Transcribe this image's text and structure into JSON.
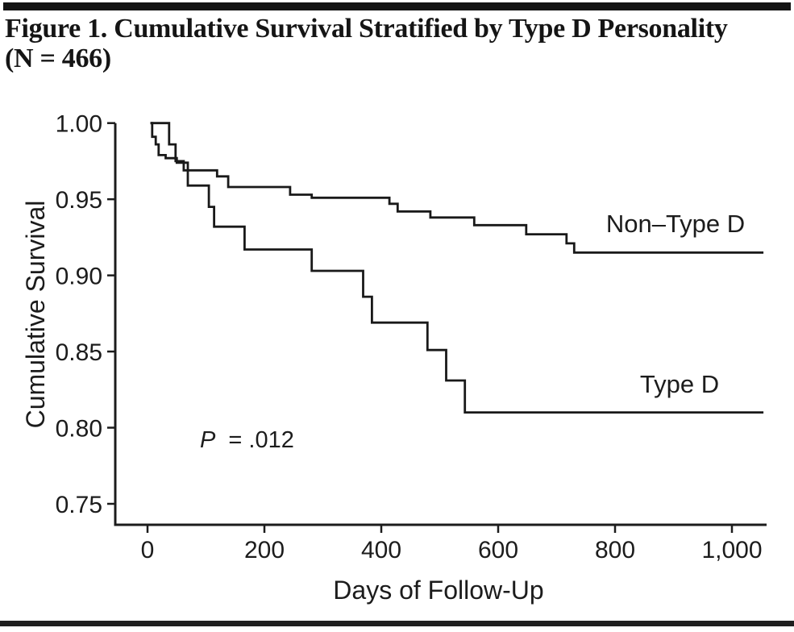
{
  "figure": {
    "title_lines": [
      "Figure 1. Cumulative Survival Stratified by Type D Personality",
      "(N = 466)"
    ]
  },
  "chart_data": {
    "type": "line",
    "variant": "kaplan-meier-step",
    "title": "Figure 1. Cumulative Survival Stratified by Type D Personality (N = 466)",
    "xlabel": "Days of Follow-Up",
    "ylabel": "Cumulative Survival",
    "xlim": [
      0,
      1060
    ],
    "ylim": [
      0.736,
      1.0
    ],
    "grid": false,
    "legend": "inline-labels",
    "x_ticks": {
      "values": [
        0,
        200,
        400,
        600,
        800,
        1000
      ],
      "labels": [
        "0",
        "200",
        "400",
        "600",
        "800",
        "1,000"
      ]
    },
    "y_ticks": {
      "values": [
        1.0,
        0.95,
        0.9,
        0.85,
        0.8,
        0.75
      ],
      "labels": [
        "1.00",
        "0.95",
        "0.90",
        "0.85",
        "0.80",
        "0.75"
      ]
    },
    "annotation": {
      "prefix_italic": "P",
      "rest": "= .012"
    },
    "series": [
      {
        "name": "Non–Type D",
        "points": [
          [
            5,
            1.0
          ],
          [
            37,
            0.986
          ],
          [
            48,
            0.975
          ],
          [
            62,
            0.969
          ],
          [
            119,
            0.965
          ],
          [
            138,
            0.958
          ],
          [
            244,
            0.953
          ],
          [
            281,
            0.951
          ],
          [
            414,
            0.947
          ],
          [
            428,
            0.942
          ],
          [
            484,
            0.938
          ],
          [
            559,
            0.933
          ],
          [
            648,
            0.927
          ],
          [
            717,
            0.921
          ],
          [
            730,
            0.915
          ],
          [
            1054,
            0.915
          ]
        ]
      },
      {
        "name": "Type D",
        "points": [
          [
            5,
            1.0
          ],
          [
            8,
            0.991
          ],
          [
            14,
            0.986
          ],
          [
            19,
            0.979
          ],
          [
            31,
            0.977
          ],
          [
            50,
            0.974
          ],
          [
            69,
            0.959
          ],
          [
            105,
            0.945
          ],
          [
            114,
            0.932
          ],
          [
            166,
            0.917
          ],
          [
            281,
            0.903
          ],
          [
            369,
            0.886
          ],
          [
            384,
            0.869
          ],
          [
            479,
            0.851
          ],
          [
            511,
            0.831
          ],
          [
            543,
            0.81
          ],
          [
            1054,
            0.81
          ]
        ]
      }
    ]
  }
}
